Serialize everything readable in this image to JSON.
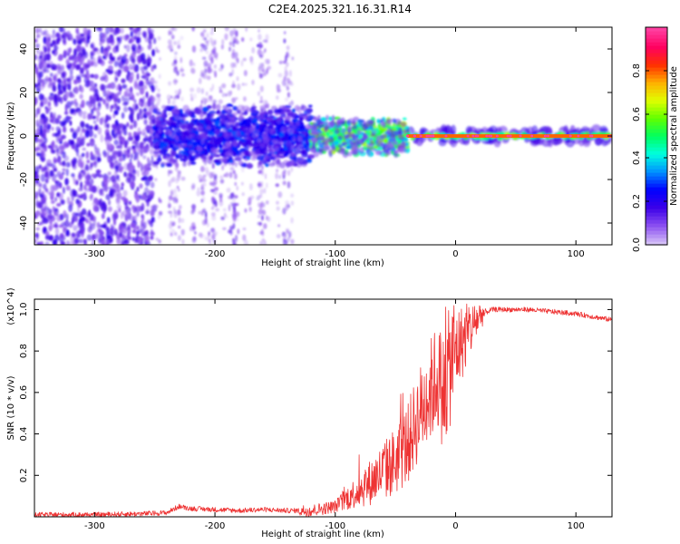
{
  "title": "C2E4.2025.321.16.31.R14",
  "chart_data": [
    {
      "type": "heatmap",
      "xlabel": "Height of straight line (km)",
      "ylabel": "Frequency (Hz)",
      "xlim": [
        -350,
        130
      ],
      "ylim": [
        -50,
        50
      ],
      "xticks": [
        -300,
        -200,
        -100,
        0,
        100
      ],
      "yticks": [
        -40,
        -20,
        0,
        20,
        40
      ],
      "grid": false,
      "colorbar": {
        "label": "Normalized spectral amplitude",
        "range": [
          0,
          1
        ],
        "ticks": [
          0.0,
          0.2,
          0.4,
          0.6,
          0.8
        ],
        "colors": [
          "#d4bff7",
          "#8a4ef0",
          "#3b00e8",
          "#0000ff",
          "#0090ff",
          "#00ffe0",
          "#00ff60",
          "#60ff00",
          "#e0ff00",
          "#ffb000",
          "#ff3000",
          "#ff0060",
          "#ff3fa0"
        ]
      },
      "regions": [
        {
          "x": [
            -350,
            -250
          ],
          "freq": [
            -50,
            50
          ],
          "amplitude": [
            0.05,
            0.2
          ],
          "description": "broadband noise"
        },
        {
          "x": [
            -250,
            -130
          ],
          "freq": [
            -50,
            50
          ],
          "amplitude": [
            0.0,
            0.12
          ],
          "description": "sparse noise stripes"
        },
        {
          "x": [
            -250,
            -120
          ],
          "freq": [
            -8,
            8
          ],
          "amplitude": [
            0.15,
            0.3
          ]
        },
        {
          "x": [
            -120,
            -40
          ],
          "freq": [
            -5,
            5
          ],
          "amplitude": [
            0.3,
            0.65
          ]
        },
        {
          "x": [
            -40,
            130
          ],
          "freq": [
            -1,
            1
          ],
          "amplitude": [
            0.8,
            1.0
          ],
          "description": "carrier line"
        }
      ]
    },
    {
      "type": "line",
      "xlabel": "Height of straight line (km)",
      "ylabel": "SNR (10 * v/v)",
      "y_multiplier": "(x10^4)",
      "xlim": [
        -350,
        130
      ],
      "ylim": [
        0,
        1.05
      ],
      "xticks": [
        -300,
        -200,
        -100,
        0,
        100
      ],
      "yticks": [
        0.2,
        0.4,
        0.6,
        0.8,
        1.0
      ],
      "grid": false,
      "color": "#ee3333",
      "series": [
        {
          "x": [
            -350,
            -300,
            -260,
            -240,
            -230,
            -220,
            -200,
            -180,
            -160,
            -140,
            -120,
            -110,
            -100,
            -90,
            -80,
            -70,
            -60,
            -50,
            -40,
            -30,
            -20,
            -15,
            -10,
            -5,
            0,
            10,
            20,
            30,
            40,
            60,
            80,
            100,
            120,
            130
          ],
          "y": [
            0.01,
            0.01,
            0.015,
            0.02,
            0.05,
            0.04,
            0.035,
            0.03,
            0.035,
            0.03,
            0.03,
            0.04,
            0.05,
            0.09,
            0.13,
            0.17,
            0.22,
            0.27,
            0.35,
            0.5,
            0.62,
            0.68,
            0.6,
            0.72,
            0.8,
            0.88,
            0.97,
            1.0,
            1.0,
            1.0,
            0.99,
            0.98,
            0.96,
            0.95
          ]
        }
      ]
    }
  ]
}
